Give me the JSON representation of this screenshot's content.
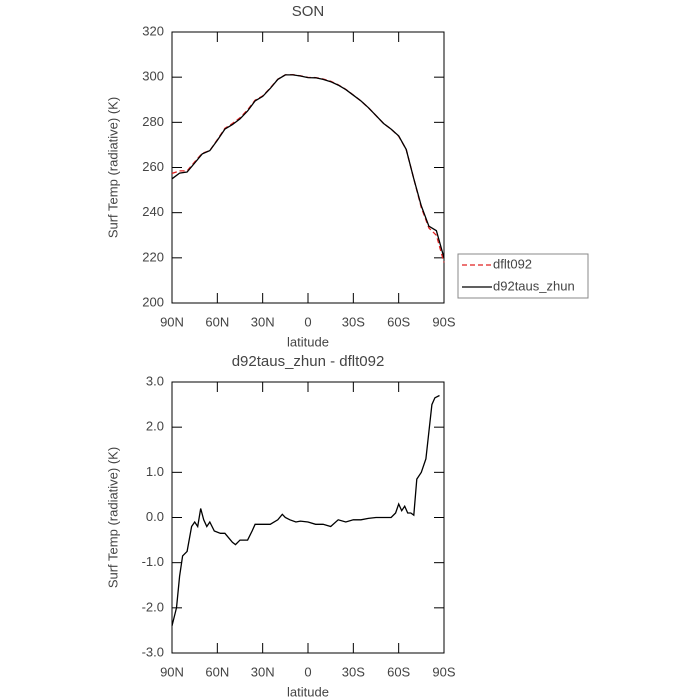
{
  "chart_data": [
    {
      "type": "line",
      "title": "SON",
      "x_label": "latitude",
      "y_label": "Surf Temp (radiative) (K)",
      "x": [
        90,
        85,
        80,
        75,
        70,
        65,
        60,
        55,
        50,
        45,
        40,
        35,
        30,
        25,
        20,
        15,
        10,
        5,
        0,
        -5,
        -10,
        -15,
        -20,
        -25,
        -30,
        -35,
        -40,
        -45,
        -50,
        -55,
        -60,
        -65,
        -70,
        -75,
        -80,
        -85,
        -90
      ],
      "series": [
        {
          "name": "dflt092",
          "color": "#e02020",
          "linestyle": "dashed",
          "values": [
            257.4,
            258.5,
            258.5,
            262.5,
            266.3,
            267.5,
            272.3,
            277.3,
            279.5,
            282,
            285.5,
            289.8,
            291.7,
            295.2,
            299.1,
            301,
            301.1,
            300.6,
            299.9,
            299.8,
            299.2,
            298.2,
            296.6,
            294.6,
            292.1,
            289.5,
            286.5,
            283,
            279.5,
            277,
            273.8,
            268,
            255,
            242.3,
            233.2,
            230,
            218
          ]
        },
        {
          "name": "d92taus_zhun",
          "color": "#000000",
          "linestyle": "solid",
          "values": [
            255,
            257.5,
            258,
            262,
            266,
            267.5,
            272,
            277,
            279,
            281.5,
            285,
            289.5,
            291.5,
            295,
            299,
            301,
            301,
            300.5,
            299.8,
            299.7,
            299,
            298,
            296.5,
            294.5,
            292,
            289.5,
            286.5,
            283,
            279.5,
            277,
            274,
            268,
            255,
            243,
            234,
            232,
            220
          ]
        }
      ],
      "xlim": [
        90,
        -90
      ],
      "xticks": [
        {
          "value": 90,
          "label": "90N"
        },
        {
          "value": 60,
          "label": "60N"
        },
        {
          "value": 30,
          "label": "30N"
        },
        0,
        {
          "value": -30,
          "label": "30S"
        },
        {
          "value": -60,
          "label": "60S"
        },
        {
          "value": -90,
          "label": "90S"
        }
      ],
      "ylim": [
        200,
        320
      ],
      "yticks": [
        200,
        220,
        240,
        260,
        280,
        300,
        320
      ],
      "legend": "right"
    },
    {
      "type": "line",
      "title": "d92taus_zhun - dflt092",
      "x_label": "latitude",
      "y_label": "Surf Temp (radiative) (K)",
      "x": [
        90,
        87,
        85,
        83,
        80,
        77,
        75,
        73,
        71,
        69,
        67,
        65,
        62,
        58,
        55,
        50,
        48,
        45,
        40,
        37,
        35,
        30,
        25,
        20,
        17,
        15,
        12,
        8,
        5,
        0,
        -5,
        -10,
        -15,
        -20,
        -25,
        -30,
        -35,
        -40,
        -45,
        -50,
        -55,
        -58,
        -60,
        -62,
        -64,
        -66,
        -68,
        -70,
        -72,
        -75,
        -78,
        -80,
        -82,
        -84,
        -87
      ],
      "series": [
        {
          "name": "d92taus_zhun - dflt092",
          "color": "#000000",
          "linestyle": "solid",
          "values": [
            -2.4,
            -2.0,
            -1.3,
            -0.85,
            -0.75,
            -0.2,
            -0.1,
            -0.2,
            0.2,
            -0.05,
            -0.2,
            -0.1,
            -0.3,
            -0.35,
            -0.35,
            -0.55,
            -0.6,
            -0.5,
            -0.5,
            -0.3,
            -0.15,
            -0.15,
            -0.15,
            -0.05,
            0.07,
            0.0,
            -0.05,
            -0.1,
            -0.08,
            -0.1,
            -0.15,
            -0.15,
            -0.2,
            -0.05,
            -0.1,
            -0.05,
            -0.05,
            -0.02,
            0.0,
            0.0,
            0.0,
            0.1,
            0.3,
            0.15,
            0.25,
            0.1,
            0.1,
            0.05,
            0.85,
            1.0,
            1.3,
            1.9,
            2.5,
            2.65,
            2.7
          ]
        }
      ],
      "xlim": [
        90,
        -90
      ],
      "xticks": [
        {
          "value": 90,
          "label": "90N"
        },
        {
          "value": 60,
          "label": "60N"
        },
        {
          "value": 30,
          "label": "30N"
        },
        0,
        {
          "value": -30,
          "label": "30S"
        },
        {
          "value": -60,
          "label": "60S"
        },
        {
          "value": -90,
          "label": "90S"
        }
      ],
      "ylim": [
        -3,
        3
      ],
      "yticks": [
        {
          "value": -3,
          "label": "-3.0"
        },
        {
          "value": -2,
          "label": "-2.0"
        },
        {
          "value": -1,
          "label": "-1.0"
        },
        {
          "value": 0,
          "label": "0.0"
        },
        {
          "value": 1,
          "label": "1.0"
        },
        {
          "value": 2,
          "label": "2.0"
        },
        {
          "value": 3,
          "label": "3.0"
        }
      ]
    }
  ]
}
